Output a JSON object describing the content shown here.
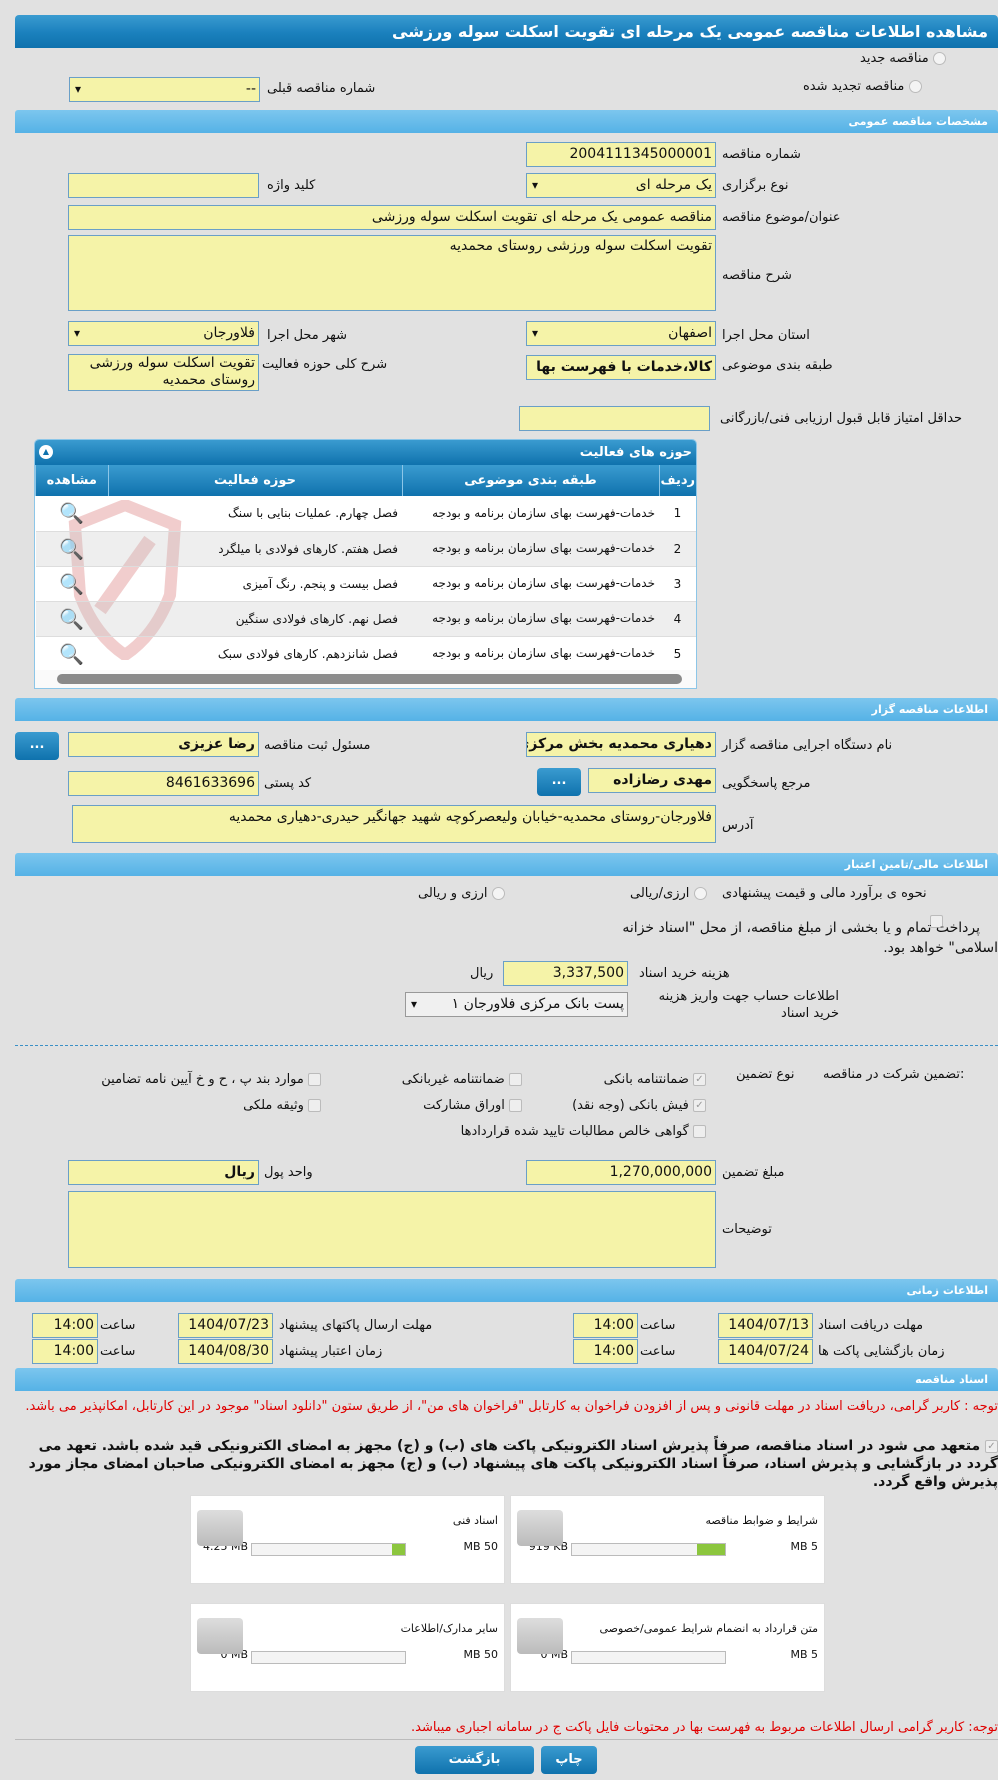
{
  "page_title": "مشاهده اطلاعات مناقصه عمومی یک مرحله ای تقویت اسکلت سوله ورزشی",
  "tender_type": {
    "new": "مناقصه جدید",
    "renewed": "مناقصه تجدید شده",
    "previous_label": "شماره مناقصه قبلی",
    "previous_value": "--"
  },
  "general": {
    "title": "مشخصات مناقصه عمومی",
    "number_label": "شماره مناقصه",
    "number": "2004111345000001",
    "holding_label": "نوع برگزاری",
    "holding": "یک مرحله ای",
    "keyword_label": "کلید واژه",
    "keyword": "",
    "subject_label": "عنوان/موضوع مناقصه",
    "subject": "مناقصه عمومی یک مرحله ای تقویت اسکلت سوله ورزشی",
    "desc_label": "شرح مناقصه",
    "desc": "تقویت اسکلت سوله ورزشی روستای محمدیه",
    "province_label": "استان محل اجرا",
    "province": "اصفهان",
    "city_label": "شهر محل اجرا",
    "city": "فلاورجان",
    "category_label": "طبقه بندی موضوعی",
    "category": "کالا،خدمات با فهرست بها",
    "scope_label": "شرح کلی حوزه فعالیت",
    "scope": "تقویت اسکلت سوله ورزشی روستای محمدیه",
    "min_score_label": "حداقل امتیاز قابل قبول ارزیابی فنی/بازرگانی",
    "min_score": ""
  },
  "activities": {
    "title": "حوزه های فعالیت",
    "headers": [
      "ردیف",
      "طبقه بندی موضوعی",
      "حوزه فعالیت",
      "مشاهده"
    ],
    "rows": [
      {
        "n": "1",
        "cat": "خدمات-فهرست بهای سازمان برنامه و بودجه",
        "scope": "فصل چهارم. عملیات بنایی با سنگ"
      },
      {
        "n": "2",
        "cat": "خدمات-فهرست بهای سازمان برنامه و بودجه",
        "scope": "فصل هفتم. کارهای فولادی با میلگرد"
      },
      {
        "n": "3",
        "cat": "خدمات-فهرست بهای سازمان برنامه و بودجه",
        "scope": "فصل بیست و پنجم. رنگ آمیزی"
      },
      {
        "n": "4",
        "cat": "خدمات-فهرست بهای سازمان برنامه و بودجه",
        "scope": "فصل نهم. کارهای فولادی سنگین"
      },
      {
        "n": "5",
        "cat": "خدمات-فهرست بهای سازمان برنامه و بودجه",
        "scope": "فصل شانزدهم. کارهای فولادی سبک"
      }
    ],
    "watermark": "AriaTender.net"
  },
  "organizer": {
    "title": "اطلاعات مناقصه گزار",
    "org_label": "نام دستگاه اجرایی مناقصه گزار",
    "org": "دهیاری محمدیه بخش مرکزی",
    "registrar_label": "مسئول ثبت مناقصه",
    "registrar": "رضا عزیزی",
    "more": "...",
    "ref_label": "مرجع پاسخگویی",
    "ref": "مهدی رضازاده",
    "postal_label": "کد پستی",
    "postal": "8461633696",
    "address_label": "آدرس",
    "address": "فلاورجان-روستای محمدیه-خیابان ولیعصرکوچه شهید جهانگیر حیدری-دهیاری محمدیه"
  },
  "finance": {
    "title": "اطلاعات مالی/تامین اعتبار",
    "estimate_label": "نحوه ی برآورد مالی و قیمت پیشنهادی",
    "rial": "ارزی/ریالی",
    "fx": "ارزی و ریالی",
    "treasury_text": "پرداخت تمام و یا بخشی از مبلغ مناقصه، از محل \"اسناد خزانه اسلامی\" خواهد بود.",
    "fee_label": "هزینه خرید اسناد",
    "fee": "3,337,500",
    "fee_unit": "ریال",
    "account_label": "اطلاعات حساب جهت واریز هزینه خرید اسناد",
    "account": "پست بانک مرکزی فلاورجان ۱"
  },
  "guarantee": {
    "label": "تضمین شرکت در مناقصه:",
    "type_label": "نوع تضمین",
    "options": [
      {
        "label": "ضمانتنامه بانکی",
        "checked": true
      },
      {
        "label": "ضمانتنامه غیربانکی",
        "checked": false
      },
      {
        "label": "موارد بند پ ، ح و خ آیین نامه تضامین",
        "checked": false
      },
      {
        "label": "فیش بانکی (وجه نقد)",
        "checked": true
      },
      {
        "label": "اوراق مشارکت",
        "checked": false
      },
      {
        "label": "وثیقه ملکی",
        "checked": false
      },
      {
        "label": "گواهی خالص مطالبات تایید شده قراردادها",
        "checked": false
      }
    ],
    "amount_label": "مبلغ تضمین",
    "amount": "1,270,000,000",
    "currency_label": "واحد پول",
    "currency": "ریال",
    "notes_label": "توضیحات",
    "notes": ""
  },
  "timing": {
    "title": "اطلاعات زمانی",
    "time_label": "ساعت",
    "doc_receive_label": "مهلت دریافت اسناد",
    "doc_receive_date": "1404/07/13",
    "doc_receive_time": "14:00",
    "submit_label": "مهلت ارسال پاکتهای پیشنهاد",
    "submit_date": "1404/07/23",
    "submit_time": "14:00",
    "open_label": "زمان بازگشایی پاکت ها",
    "open_date": "1404/07/24",
    "open_time": "14:00",
    "validity_label": "زمان اعتبار پیشنهاد",
    "validity_date": "1404/08/30",
    "validity_time": "14:00"
  },
  "documents": {
    "title": "اسناد مناقصه",
    "notice": "توجه : کاربر گرامی، دریافت اسناد در مهلت قانونی و پس از افزودن فراخوان به کارتابل \"فراخوان های من\"، از طریق ستون \"دانلود اسناد\" موجود در این کارتابل، امکانپذیر می باشد.",
    "commitment": "متعهد می شود در اسناد مناقصه، صرفاً پذیرش اسناد الکترونیکی پاکت های (ب) و (ج) مجهز به امضای الکترونیکی قید شده باشد. تعهد می گردد در بازگشایی و پذیرش اسناد، صرفاً اسناد الکترونیکی پاکت های پیشنهاد (ب) و (ج) مجهز به امضای الکترونیکی صاحبان امضای مجاز مورد پذیرش واقع گردد.",
    "cards": [
      {
        "label": "شرایط و ضوابط مناقصه",
        "used": "919 KB",
        "max": "5 MB",
        "fill": 0.18
      },
      {
        "label": "اسناد فنی",
        "used": "4.25 MB",
        "max": "50 MB",
        "fill": 0.085
      },
      {
        "label": "متن قرارداد به انضمام شرایط عمومی/خصوصی",
        "used": "0 MB",
        "max": "5 MB",
        "fill": 0
      },
      {
        "label": "سایر مدارک/اطلاعات",
        "used": "0 MB",
        "max": "50 MB",
        "fill": 0
      }
    ],
    "footer_note": "توجه: کاربر گرامی ارسال اطلاعات مربوط به فهرست بها در محتویات فایل پاکت ج در سامانه اجباری میباشد."
  },
  "buttons": {
    "print": "چاپ",
    "back": "بازگشت"
  }
}
